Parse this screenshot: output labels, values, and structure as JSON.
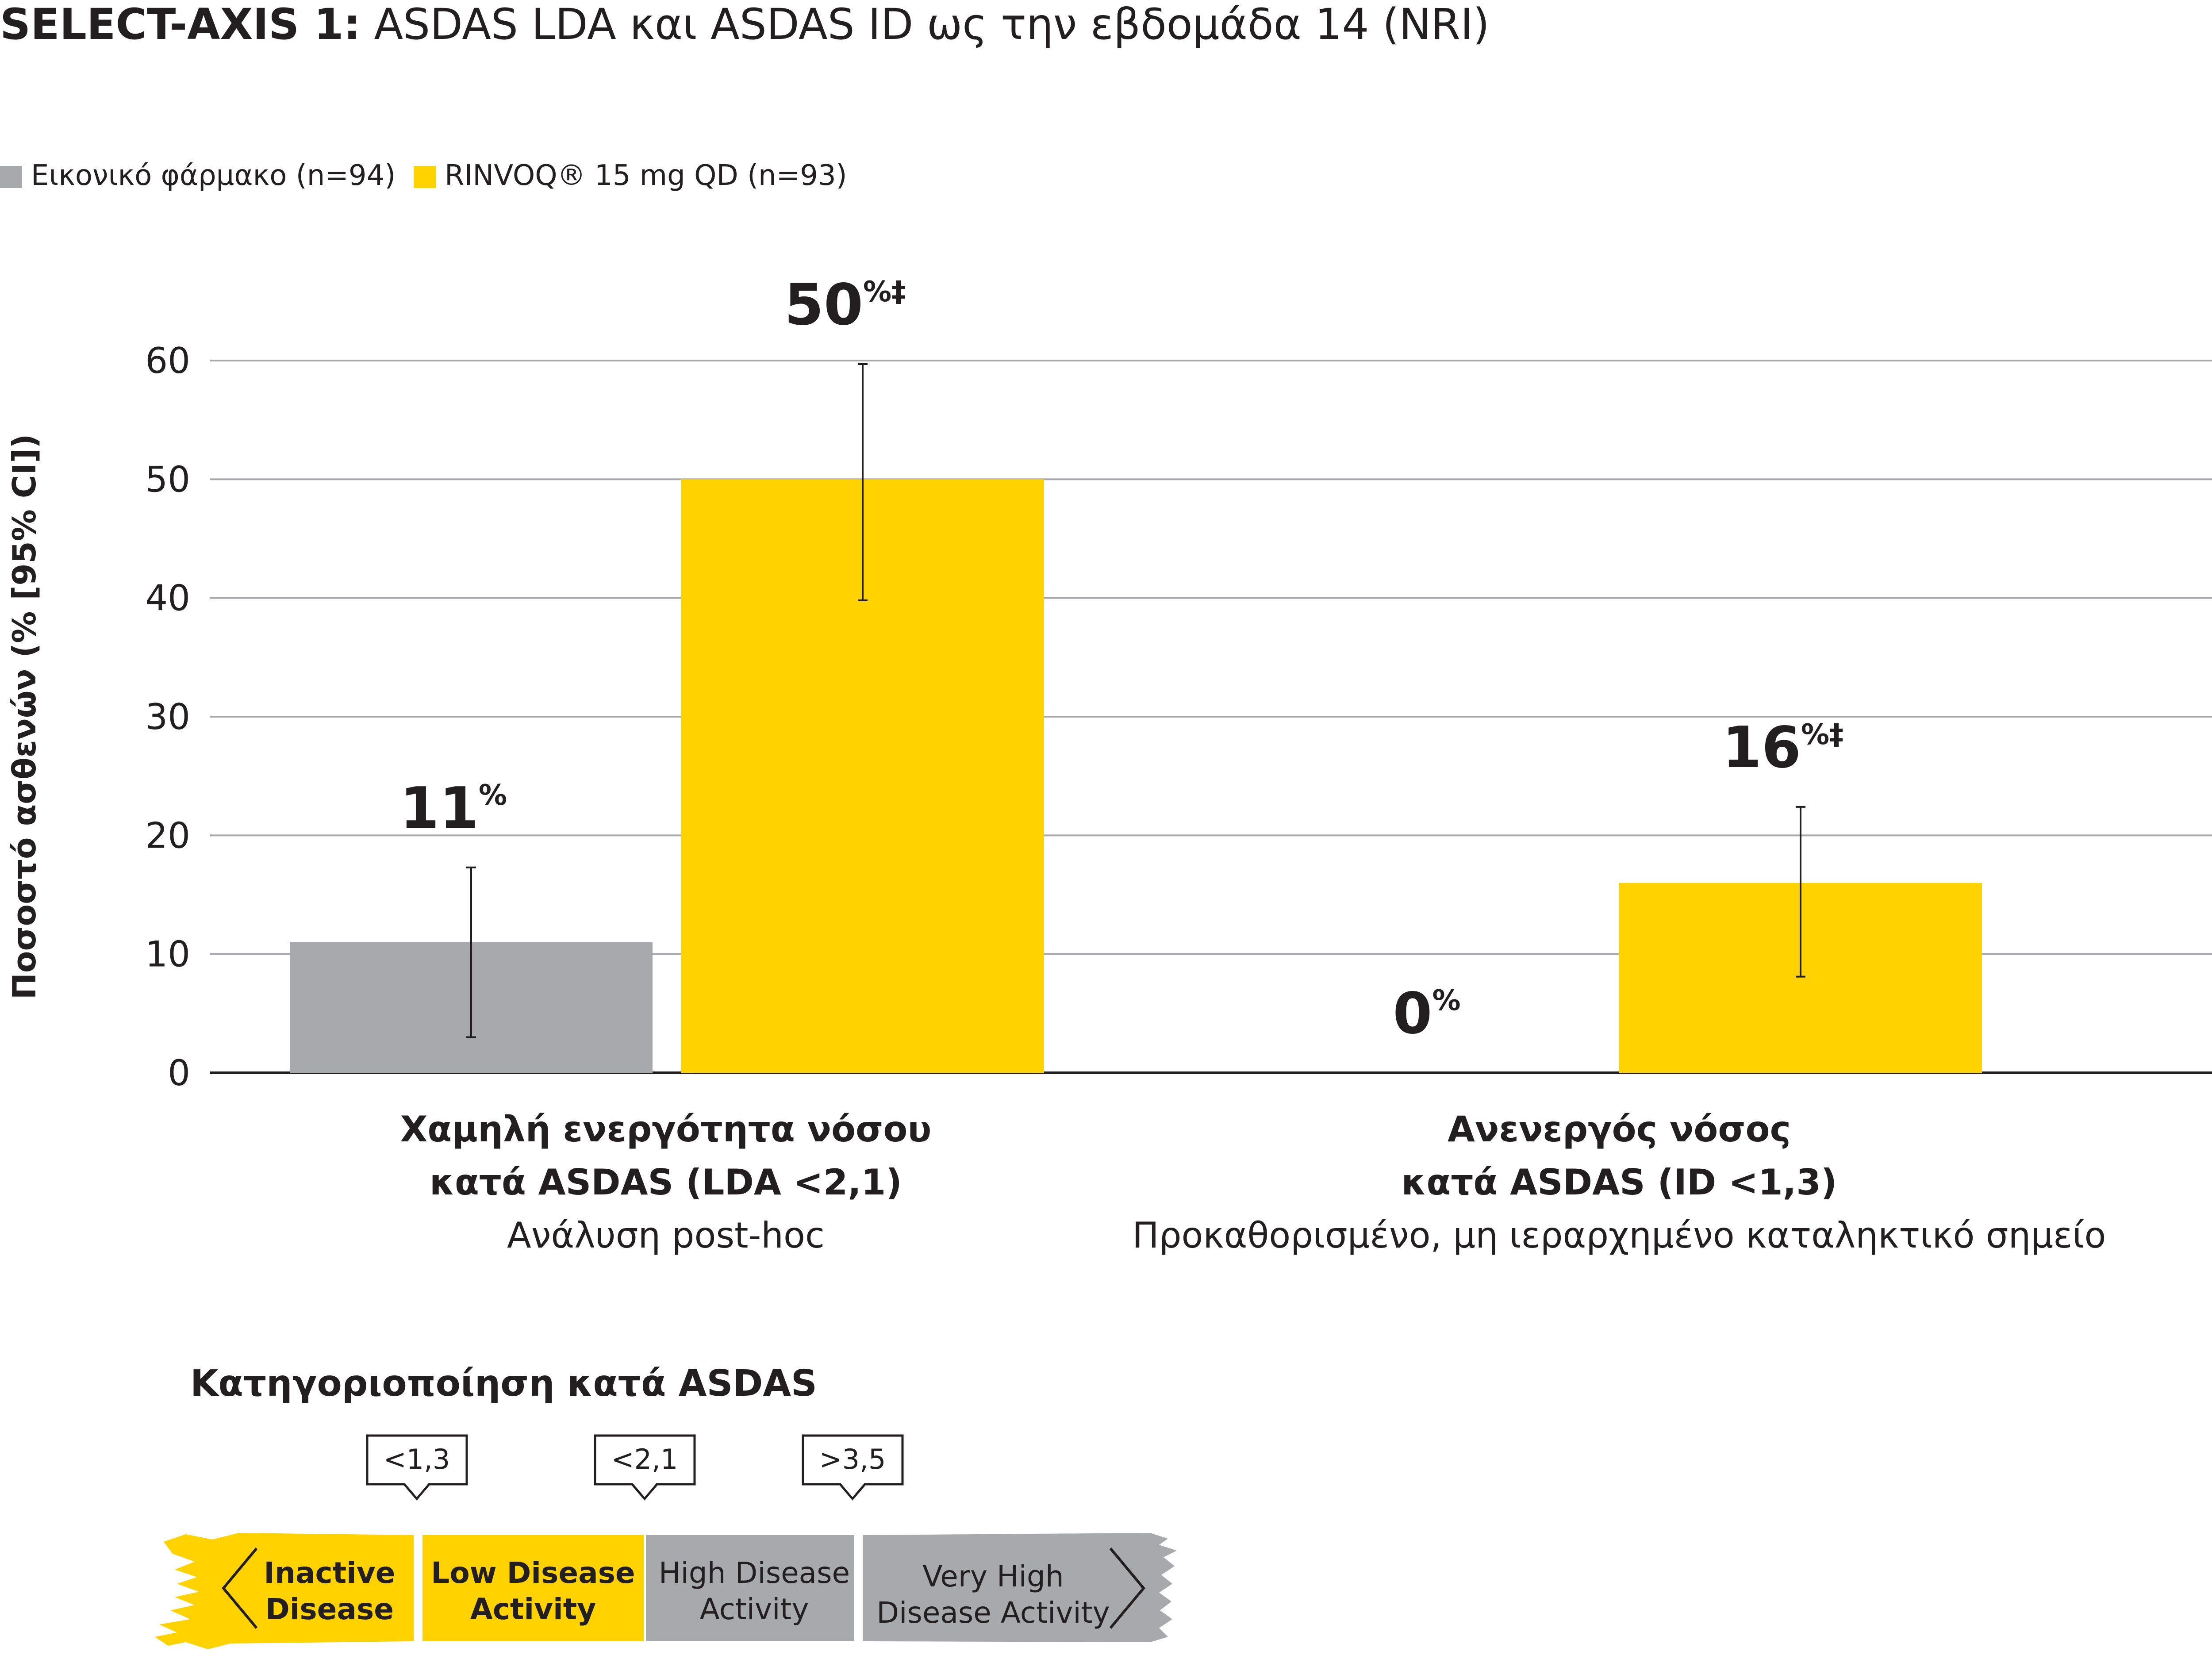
{
  "title": {
    "bold": "SELECT-AXIS 1:",
    "rest": " ASDAS LDA και ASDAS ID ως την εβδομάδα 14 (NRI)"
  },
  "legend": [
    {
      "label": "Εικονικό φάρμακο (n=94)",
      "color": "#a7a9ac"
    },
    {
      "label": "RINVOQ® 15 mg QD (n=93)",
      "color": "#ffd200"
    }
  ],
  "chart_data": {
    "type": "bar",
    "ylabel": "Ποσοστό ασθενών (% [95% CI])",
    "ylim": [
      0,
      60
    ],
    "yticks": [
      "0",
      "10",
      "20",
      "30",
      "40",
      "50",
      "60"
    ],
    "grid": true,
    "legend_position": "top-left",
    "groups": [
      {
        "label_line1": "Χαμηλή ενεργότητα νόσου",
        "label_line2": "κατά ASDAS (LDA <2,1)",
        "sublabel": "Ανάλυση post-hoc"
      },
      {
        "label_line1": "Ανενεργός νόσος",
        "label_line2": "κατά ASDAS (ID <1,3)",
        "sublabel": "Προκαθορισμένο, μη ιεραρχημένο καταληκτικό σημείο"
      }
    ],
    "series": [
      {
        "name": "Εικονικό φάρμακο (n=94)",
        "color": "#a7a9ac",
        "values": [
          11,
          0
        ],
        "ci_low": [
          3,
          null
        ],
        "ci_high": [
          17.3,
          null
        ],
        "labels": [
          "11",
          "0"
        ],
        "label_sup": [
          "%",
          "%"
        ]
      },
      {
        "name": "RINVOQ® 15 mg QD (n=93)",
        "color": "#ffd200",
        "values": [
          50,
          16
        ],
        "ci_low": [
          39.8,
          8.1
        ],
        "ci_high": [
          59.7,
          22.4
        ],
        "labels": [
          "50",
          "16"
        ],
        "label_sup": [
          "%‡",
          "%‡"
        ]
      }
    ]
  },
  "asdas": {
    "heading": "Κατηγοριοποίηση κατά ASDAS",
    "thresholds": [
      "<1,3",
      "<2,1",
      ">3,5"
    ],
    "segments": [
      {
        "line1": "Inactive",
        "line2": "Disease",
        "color": "#ffd200",
        "bold": true
      },
      {
        "line1": "Low Disease",
        "line2": "Activity",
        "color": "#ffd200",
        "bold": true
      },
      {
        "line1": "High Disease",
        "line2": "Activity",
        "color": "#a7a9ac",
        "bold": false
      },
      {
        "line1": "Very High",
        "line2": "Disease Activity",
        "color": "#a7a9ac",
        "bold": false
      }
    ]
  }
}
